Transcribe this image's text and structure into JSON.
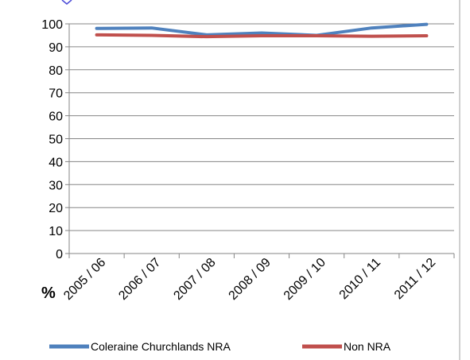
{
  "chart_data": {
    "type": "line",
    "categories": [
      "2005 / 06",
      "2006 / 07",
      "2007 / 08",
      "2008 / 09",
      "2009 / 10",
      "2010 / 11",
      "2011 / 12"
    ],
    "series": [
      {
        "name": "Coleraine Churchlands NRA",
        "values": [
          98,
          98.2,
          95.2,
          96,
          95,
          98.2,
          99.8
        ],
        "color": "#4F81BD"
      },
      {
        "name": "Non NRA",
        "values": [
          95.2,
          95,
          94.4,
          94.8,
          94.8,
          94.6,
          94.8
        ],
        "color": "#C0504D"
      }
    ],
    "y_ticks": [
      "0",
      "10",
      "20",
      "30",
      "40",
      "50",
      "60",
      "70",
      "80",
      "90",
      "100"
    ],
    "ylim": [
      0,
      100
    ],
    "ylabel": "%",
    "xlabel": "",
    "title": "",
    "grid": true,
    "legend_position": "bottom"
  }
}
